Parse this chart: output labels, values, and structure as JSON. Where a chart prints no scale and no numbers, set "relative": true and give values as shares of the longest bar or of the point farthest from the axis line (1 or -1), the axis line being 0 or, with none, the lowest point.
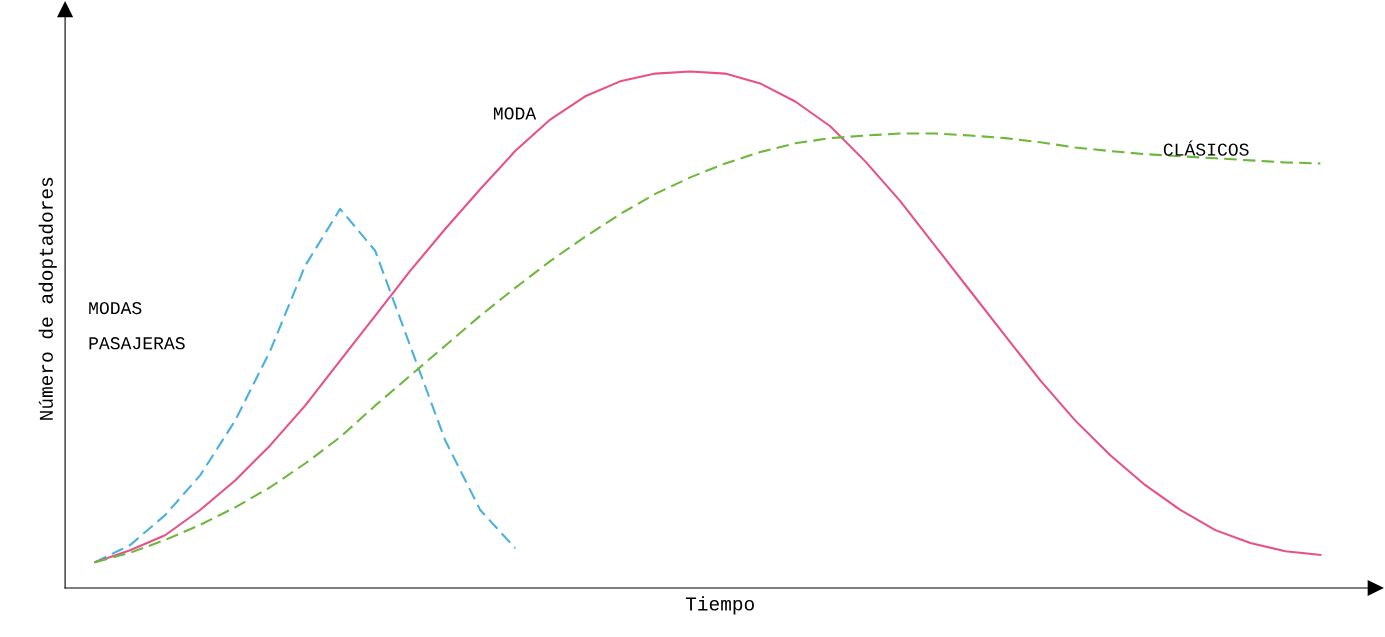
{
  "chart_data": {
    "type": "line",
    "relative": true,
    "xlabel": "Tiempo",
    "ylabel": "Número de adoptadores",
    "marker": "none",
    "legend": false,
    "categories": [
      null,
      null,
      null,
      null,
      null,
      null,
      null,
      null,
      null,
      null,
      null,
      null,
      null,
      null,
      null,
      null,
      null,
      null,
      null,
      null,
      null,
      null,
      null,
      null,
      null,
      null,
      null,
      null,
      null,
      null,
      null,
      null,
      null,
      null,
      null,
      null
    ],
    "series": [
      {
        "name": "MODAS\nPASAJERAS",
        "color": "#4ab0e0",
        "line_style": "dashed",
        "values": [
          0.05,
          0.083,
          0.141,
          0.218,
          0.324,
          0.459,
          0.624,
          0.734,
          0.653,
          0.469,
          0.286,
          0.151,
          0.077,
          null,
          null,
          null,
          null,
          null,
          null,
          null,
          null,
          null,
          null,
          null,
          null,
          null,
          null,
          null,
          null,
          null,
          null,
          null,
          null,
          null,
          null,
          null
        ]
      },
      {
        "name": "MODA",
        "color": "#e8508a",
        "line_style": "solid",
        "values": [
          0.05,
          0.073,
          0.102,
          0.151,
          0.208,
          0.276,
          0.353,
          0.44,
          0.527,
          0.614,
          0.695,
          0.772,
          0.846,
          0.907,
          0.952,
          0.981,
          0.996,
          1.0,
          0.996,
          0.977,
          0.942,
          0.894,
          0.826,
          0.749,
          0.662,
          0.575,
          0.488,
          0.402,
          0.324,
          0.257,
          0.199,
          0.151,
          0.112,
          0.087,
          0.071,
          0.064
        ]
      },
      {
        "name": "CLÁSICOS",
        "color": "#6cb83a",
        "line_style": "dashed",
        "values": [
          0.05,
          0.068,
          0.093,
          0.122,
          0.156,
          0.195,
          0.241,
          0.292,
          0.353,
          0.411,
          0.469,
          0.527,
          0.581,
          0.633,
          0.68,
          0.724,
          0.763,
          0.795,
          0.822,
          0.844,
          0.861,
          0.871,
          0.876,
          0.88,
          0.88,
          0.876,
          0.871,
          0.863,
          0.853,
          0.846,
          0.84,
          0.836,
          0.832,
          0.828,
          0.824,
          0.822
        ]
      }
    ]
  }
}
